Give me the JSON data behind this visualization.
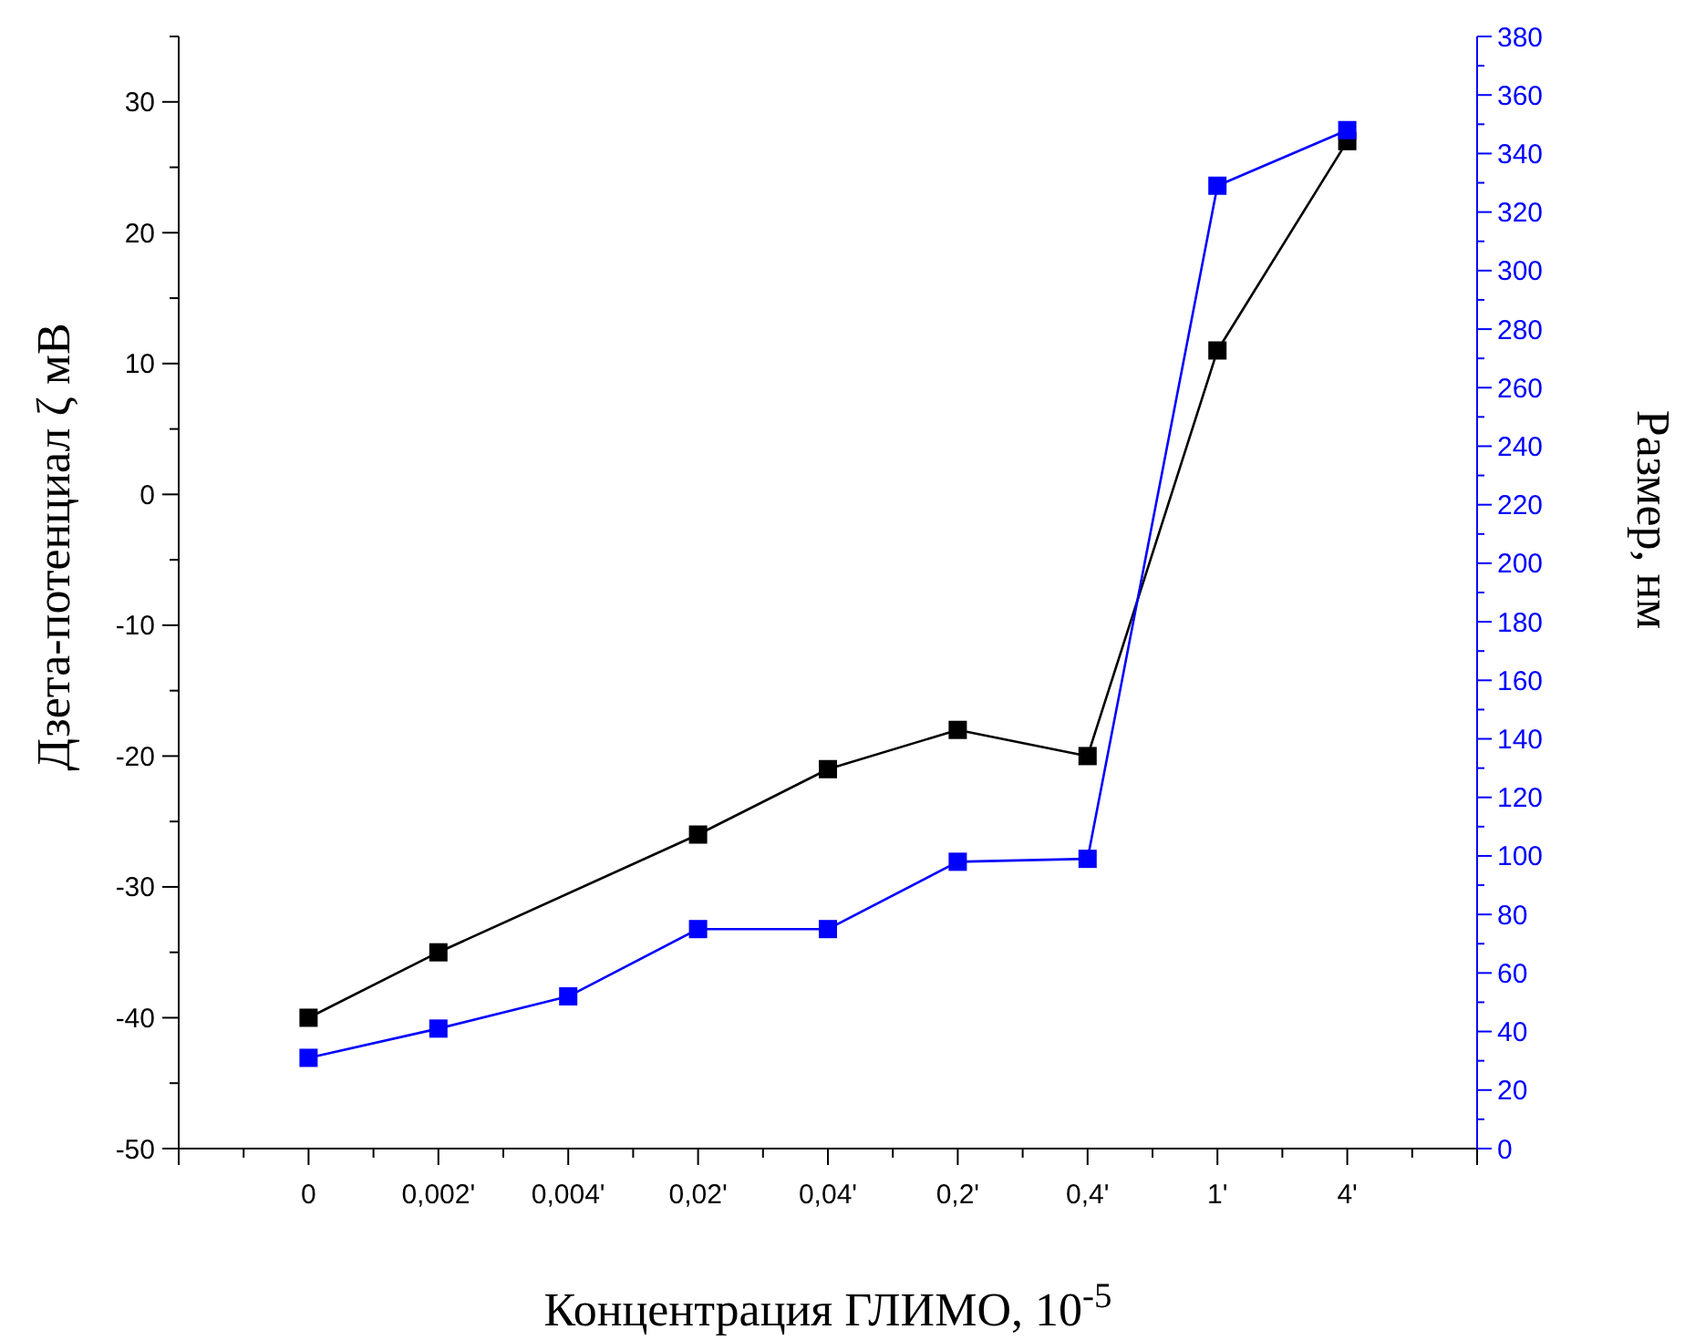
{
  "chart_data": {
    "type": "line",
    "xlabel": "Концентрация ГЛИМО, 10$^{-5}$",
    "ylabel": "Дзета-потенциал ζ мВ",
    "y2label": "Размер, нм",
    "categories": [
      "0",
      "0,002'",
      "0,004'",
      "0,02'",
      "0,04'",
      "0,2'",
      "0,4'",
      "1'",
      "4'"
    ],
    "series": [
      {
        "color": "#000000",
        "values": [
          -40,
          -35,
          null,
          -26,
          -21,
          -18,
          -20,
          11,
          27
        ]
      },
      {
        "color": "#0000ff",
        "axis": "y2",
        "values": [
          31,
          41,
          52,
          75,
          75,
          98,
          99,
          329,
          348
        ]
      }
    ],
    "ylim": [
      -50,
      35
    ],
    "yticks": [
      -50,
      -40,
      -30,
      -20,
      -10,
      0,
      10,
      20,
      30
    ],
    "y2lim": [
      0,
      380
    ],
    "y2ticks": [
      0,
      20,
      40,
      60,
      80,
      100,
      120,
      140,
      160,
      180,
      200,
      220,
      240,
      260,
      280,
      300,
      320,
      340,
      360,
      380
    ],
    "marker": "square",
    "line_style": "solid",
    "grid": false
  }
}
